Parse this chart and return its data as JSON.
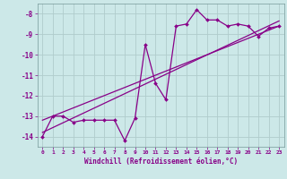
{
  "xlabel": "Windchill (Refroidissement éolien,°C)",
  "background_color": "#cce8e8",
  "grid_color": "#b0cccc",
  "line_color": "#880088",
  "x_data": [
    0,
    1,
    2,
    3,
    4,
    5,
    6,
    7,
    8,
    9,
    10,
    11,
    12,
    13,
    14,
    15,
    16,
    17,
    18,
    19,
    20,
    21,
    22,
    23
  ],
  "y_windchill": [
    -14.0,
    -13.0,
    -13.0,
    -13.3,
    -13.2,
    -13.2,
    -13.2,
    -13.2,
    -14.2,
    -13.1,
    -9.5,
    -11.4,
    -12.2,
    -8.6,
    -8.5,
    -7.8,
    -8.3,
    -8.3,
    -8.6,
    -8.5,
    -8.6,
    -9.1,
    -8.7,
    -8.6
  ],
  "trend1_x": [
    0,
    23
  ],
  "trend1_y": [
    -13.8,
    -8.35
  ],
  "trend2_x": [
    0,
    23
  ],
  "trend2_y": [
    -13.2,
    -8.6
  ],
  "ylim": [
    -14.5,
    -7.5
  ],
  "xlim": [
    -0.5,
    23.5
  ],
  "yticks": [
    -14,
    -13,
    -12,
    -11,
    -10,
    -9,
    -8
  ],
  "xticks": [
    0,
    1,
    2,
    3,
    4,
    5,
    6,
    7,
    8,
    9,
    10,
    11,
    12,
    13,
    14,
    15,
    16,
    17,
    18,
    19,
    20,
    21,
    22,
    23
  ]
}
